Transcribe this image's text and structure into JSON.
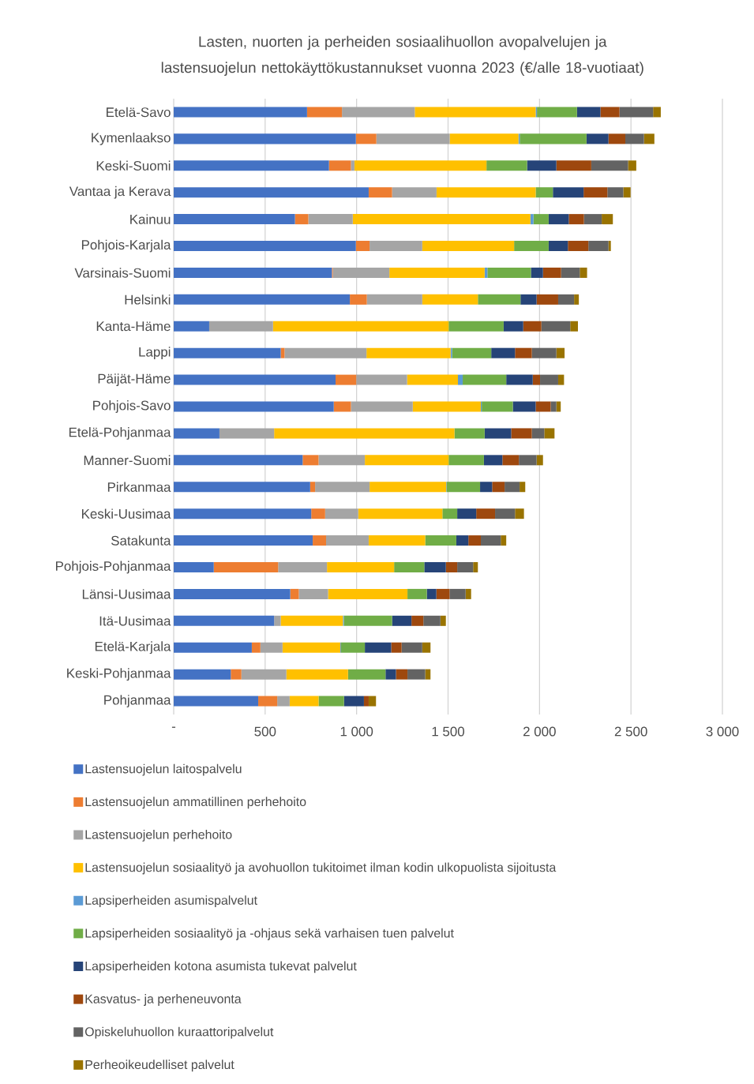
{
  "chart_data": {
    "type": "bar",
    "orientation": "horizontal",
    "stacked": true,
    "title": "Lasten, nuorten ja perheiden sosiaalihuollon avopalvelujen ja lastensuojelun nettokäyttökustannukset vuonna 2023 (€/alle 18-vuotiaat)",
    "categories": [
      "Etelä-Savo",
      "Kymenlaakso",
      "Keski-Suomi",
      "Vantaa ja Kerava",
      "Kainuu",
      "Pohjois-Karjala",
      "Varsinais-Suomi",
      "Helsinki",
      "Kanta-Häme",
      "Lappi",
      "Päijät-Häme",
      "Pohjois-Savo",
      "Etelä-Pohjanmaa",
      "Manner-Suomi",
      "Pirkanmaa",
      "Keski-Uusimaa",
      "Satakunta",
      "Pohjois-Pohjanmaa",
      "Länsi-Uusimaa",
      "Itä-Uusimaa",
      "Etelä-Karjala",
      "Keski-Pohjanmaa",
      "Pohjanmaa"
    ],
    "series": [
      {
        "name": "Lastensuojelun laitospalvelu",
        "color": "#4472c4",
        "values": [
          729,
          996,
          849,
          1066,
          663,
          996,
          865,
          963,
          194,
          585,
          885,
          875,
          250,
          705,
          746,
          752,
          760,
          219,
          637,
          549,
          427,
          312,
          462
        ]
      },
      {
        "name": "Lastensuojelun ammatillinen perhehoito",
        "color": "#ed7d31",
        "values": [
          191,
          112,
          120,
          128,
          73,
          75,
          5,
          93,
          0,
          21,
          113,
          94,
          0,
          87,
          27,
          76,
          73,
          352,
          47,
          0,
          47,
          58,
          104
        ]
      },
      {
        "name": "Lastensuojelun perhehoito",
        "color": "#a5a5a5",
        "values": [
          398,
          401,
          19,
          243,
          243,
          288,
          309,
          303,
          349,
          448,
          278,
          338,
          299,
          253,
          298,
          181,
          233,
          267,
          160,
          36,
          121,
          246,
          68
        ]
      },
      {
        "name": "Lastensuojelun sosiaalityö ja avohuollon tukitoimet ilman kodin ulkopuolista sijoitusta",
        "color": "#ffc000",
        "values": [
          661,
          376,
          722,
          542,
          971,
          502,
          521,
          304,
          960,
          460,
          278,
          372,
          986,
          458,
          419,
          460,
          309,
          367,
          434,
          340,
          316,
          337,
          158
        ]
      },
      {
        "name": "Lapsiperheiden asumispalvelut",
        "color": "#5b9bd5",
        "values": [
          7,
          7,
          0,
          0,
          17,
          0,
          15,
          0,
          0,
          8,
          26,
          5,
          0,
          0,
          3,
          0,
          0,
          0,
          null,
          5,
          4,
          0,
          0
        ]
      },
      {
        "name": "Lapsiperheiden sosiaalityö ja -ohjaus sekä varhaisen tuen palvelut",
        "color": "#70ad47",
        "values": [
          219,
          365,
          222,
          94,
          83,
          189,
          238,
          233,
          301,
          214,
          238,
          170,
          165,
          193,
          182,
          81,
          170,
          165,
          106,
          264,
          130,
          205,
          139
        ]
      },
      {
        "name": "Lapsiperheiden kotona asumista tukevat palvelut",
        "color": "#264478",
        "values": [
          128,
          120,
          160,
          168,
          110,
          105,
          66,
          88,
          107,
          130,
          145,
          125,
          145,
          101,
          66,
          104,
          66,
          118,
          52,
          106,
          144,
          57,
          109
        ]
      },
      {
        "name": "Kasvatus- ja perheneuvonta",
        "color": "#9e480e",
        "values": [
          104,
          92,
          191,
          130,
          83,
          112,
          99,
          118,
          99,
          92,
          40,
          82,
          113,
          90,
          68,
          103,
          68,
          62,
          72,
          65,
          57,
          63,
          26
        ]
      },
      {
        "name": "Opiskeluhuollon kuraattoripalvelut",
        "color": "#636363",
        "values": [
          184,
          102,
          201,
          87,
          97,
          110,
          102,
          87,
          158,
          134,
          99,
          31,
          68,
          97,
          82,
          109,
          109,
          87,
          88,
          93,
          113,
          97,
          0
        ]
      },
      {
        "name": "Perheoikeudelliset palvelut",
        "color": "#997300",
        "values": [
          42,
          57,
          45,
          40,
          61,
          13,
          40,
          26,
          42,
          45,
          32,
          24,
          56,
          35,
          31,
          49,
          30,
          26,
          30,
          30,
          45,
          29,
          40
        ]
      }
    ],
    "xlim": [
      0,
      3000
    ],
    "xticks": [
      {
        "value": 0,
        "label": "-"
      },
      500,
      {
        "value": 1000,
        "label": "1 000"
      },
      {
        "value": 1500,
        "label": "1 500"
      },
      {
        "value": 2000,
        "label": "2 000"
      },
      {
        "value": 2500,
        "label": "2 500"
      },
      {
        "value": 3000,
        "label": "3 000"
      }
    ],
    "grid": "x",
    "legend": "bottom"
  }
}
